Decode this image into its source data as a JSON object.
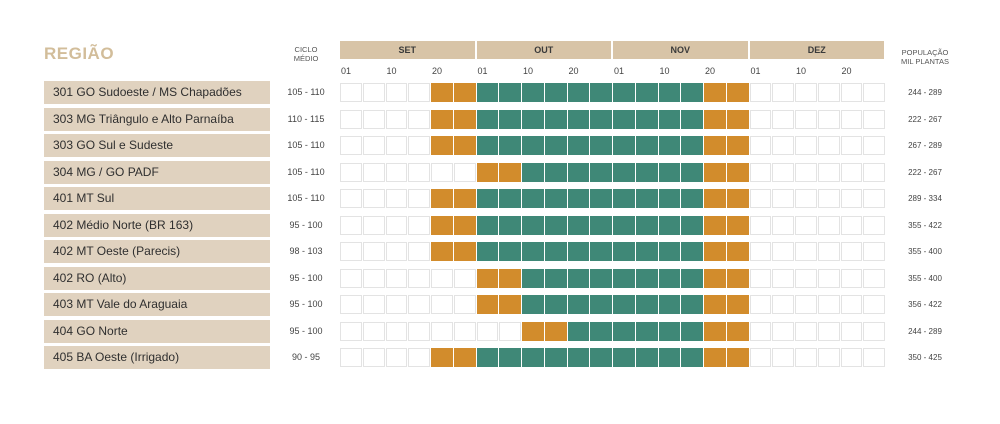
{
  "header": {
    "region_title": "REGIÃO",
    "ciclo_label_1": "CICLO",
    "ciclo_label_2": "MÉDIO",
    "pop_label_1": "POPULAÇÃO",
    "pop_label_2": "MIL PLANTAS"
  },
  "colors": {
    "month_band": "#d8c4a7",
    "row_label_bg": "#e0d2bf",
    "title": "#d2bd9a",
    "marginal_window": "#d28c2c",
    "preferred_window": "#3f8877"
  },
  "chart_data": {
    "type": "table",
    "months": [
      "SET",
      "OUT",
      "NOV",
      "DEZ"
    ],
    "day_ticks": [
      "01",
      "10",
      "20"
    ],
    "periods_per_month": 6,
    "legend": "none",
    "rows": [
      {
        "region": "301 GO Sudoeste / MS Chapadões",
        "ciclo": "105 - 110",
        "populacao": "244 - 289",
        "periods": [
          0,
          0,
          0,
          0,
          1,
          1,
          2,
          2,
          2,
          2,
          2,
          2,
          2,
          2,
          2,
          2,
          1,
          1,
          0,
          0,
          0,
          0,
          0,
          0
        ]
      },
      {
        "region": "303 MG Triângulo e Alto Parnaíba",
        "ciclo": "110 - 115",
        "populacao": "222 - 267",
        "periods": [
          0,
          0,
          0,
          0,
          1,
          1,
          2,
          2,
          2,
          2,
          2,
          2,
          2,
          2,
          2,
          2,
          1,
          1,
          0,
          0,
          0,
          0,
          0,
          0
        ]
      },
      {
        "region": "303 GO Sul e Sudeste",
        "ciclo": "105 - 110",
        "populacao": "267 - 289",
        "periods": [
          0,
          0,
          0,
          0,
          1,
          1,
          2,
          2,
          2,
          2,
          2,
          2,
          2,
          2,
          2,
          2,
          1,
          1,
          0,
          0,
          0,
          0,
          0,
          0
        ]
      },
      {
        "region": "304 MG / GO PADF",
        "ciclo": "105 - 110",
        "populacao": "222 - 267",
        "periods": [
          0,
          0,
          0,
          0,
          0,
          0,
          1,
          1,
          2,
          2,
          2,
          2,
          2,
          2,
          2,
          2,
          1,
          1,
          0,
          0,
          0,
          0,
          0,
          0
        ]
      },
      {
        "region": "401 MT Sul",
        "ciclo": "105 - 110",
        "populacao": "289 - 334",
        "periods": [
          0,
          0,
          0,
          0,
          1,
          1,
          2,
          2,
          2,
          2,
          2,
          2,
          2,
          2,
          2,
          2,
          1,
          1,
          0,
          0,
          0,
          0,
          0,
          0
        ]
      },
      {
        "region": "402 Médio Norte (BR 163)",
        "ciclo": "95 - 100",
        "populacao": "355 - 422",
        "periods": [
          0,
          0,
          0,
          0,
          1,
          1,
          2,
          2,
          2,
          2,
          2,
          2,
          2,
          2,
          2,
          2,
          1,
          1,
          0,
          0,
          0,
          0,
          0,
          0
        ]
      },
      {
        "region": "402 MT Oeste (Parecis)",
        "ciclo": "98 - 103",
        "populacao": "355 - 400",
        "periods": [
          0,
          0,
          0,
          0,
          1,
          1,
          2,
          2,
          2,
          2,
          2,
          2,
          2,
          2,
          2,
          2,
          1,
          1,
          0,
          0,
          0,
          0,
          0,
          0
        ]
      },
      {
        "region": "402 RO (Alto)",
        "ciclo": "95 - 100",
        "populacao": "355 - 400",
        "periods": [
          0,
          0,
          0,
          0,
          0,
          0,
          1,
          1,
          2,
          2,
          2,
          2,
          2,
          2,
          2,
          2,
          1,
          1,
          0,
          0,
          0,
          0,
          0,
          0
        ]
      },
      {
        "region": "403 MT Vale do Araguaia",
        "ciclo": "95 - 100",
        "populacao": "356 - 422",
        "periods": [
          0,
          0,
          0,
          0,
          0,
          0,
          1,
          1,
          2,
          2,
          2,
          2,
          2,
          2,
          2,
          2,
          1,
          1,
          0,
          0,
          0,
          0,
          0,
          0
        ]
      },
      {
        "region": "404 GO Norte",
        "ciclo": "95 - 100",
        "populacao": "244 - 289",
        "periods": [
          0,
          0,
          0,
          0,
          0,
          0,
          0,
          0,
          1,
          1,
          2,
          2,
          2,
          2,
          2,
          2,
          1,
          1,
          0,
          0,
          0,
          0,
          0,
          0
        ]
      },
      {
        "region": "405 BA Oeste (Irrigado)",
        "ciclo": "90 - 95",
        "populacao": "350 - 425",
        "periods": [
          0,
          0,
          0,
          0,
          1,
          1,
          2,
          2,
          2,
          2,
          2,
          2,
          2,
          2,
          2,
          2,
          1,
          1,
          0,
          0,
          0,
          0,
          0,
          0
        ]
      }
    ]
  }
}
